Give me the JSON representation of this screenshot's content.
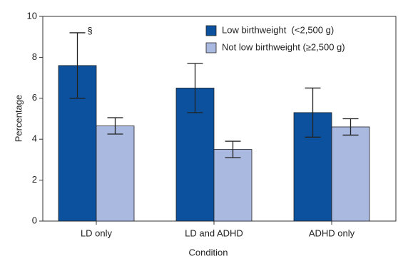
{
  "chart_data": {
    "type": "bar",
    "x_label": "Condition",
    "y_label": "Percentage",
    "categories": [
      "LD only",
      "LD and ADHD",
      "ADHD only"
    ],
    "series": [
      {
        "name": "Low birthweight  (<2,500 g)",
        "color": "#0b519e",
        "values": [
          7.6,
          6.5,
          5.3
        ],
        "errors": [
          1.6,
          1.2,
          1.2
        ]
      },
      {
        "name": "Not low birthweight (≥2,500 g)",
        "color": "#a9b9df",
        "values": [
          4.65,
          3.5,
          4.6
        ],
        "errors": [
          0.4,
          0.4,
          0.4
        ]
      }
    ],
    "annotation": "§",
    "ylim": [
      0,
      10
    ],
    "yticks": [
      0,
      2,
      4,
      6,
      8,
      10
    ]
  }
}
